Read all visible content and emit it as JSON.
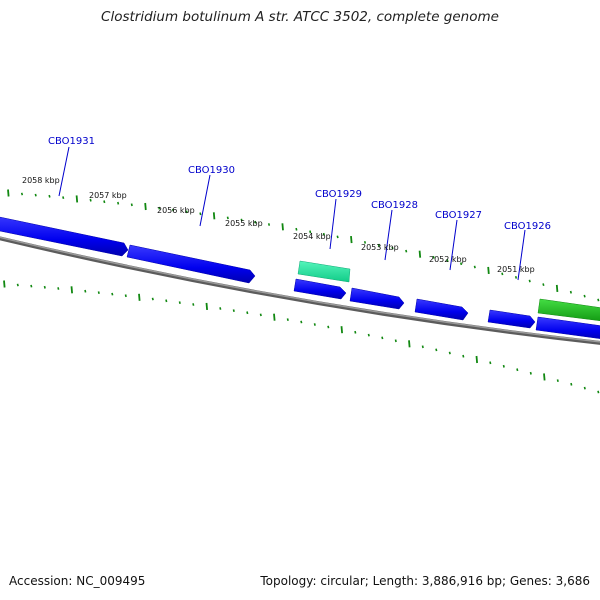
{
  "title": "Clostridium botulinum A str. ATCC 3502, complete genome",
  "footer": {
    "accession": "Accession: NC_009495",
    "summary": "Topology: circular; Length: 3,886,916 bp; Genes: 3,686"
  },
  "genes": [
    "CBO1931",
    "CBO1930",
    "CBO1929",
    "CBO1928",
    "CBO1927",
    "CBO1926"
  ],
  "scale_labels": [
    "2058 kbp",
    "2057 kbp",
    "2056 kbp",
    "2055 kbp",
    "2054 kbp",
    "2053 kbp",
    "2052 kbp",
    "2051 kbp"
  ],
  "colors": {
    "forward_cds": "#0000ee",
    "rna_light": "#22e6a0",
    "rna_dark": "#22bb22",
    "backbone": "#777777",
    "tick": "#118811",
    "label": "#0000cc"
  }
}
